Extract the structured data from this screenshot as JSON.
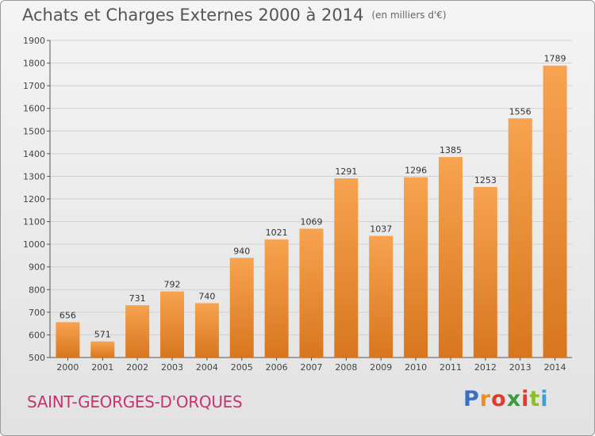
{
  "header": {
    "title": "Achats et Charges Externes 2000 à 2014",
    "unit": "(en milliers d'€)"
  },
  "footer": {
    "commune": "SAINT-GEORGES-D'ORQUES",
    "logo_letters": [
      "P",
      "r",
      "o",
      "x",
      "i",
      "t",
      "i"
    ],
    "logo_colors": [
      "#3a6fc4",
      "#f08a1c",
      "#e23a2e",
      "#3a9a3e",
      "#e23a2e",
      "#8bbf2a",
      "#3aa0d8"
    ]
  },
  "colors": {
    "bar_light": "#f7a34f",
    "bar_dark": "#d8761f",
    "grid": "#cfcfcf",
    "axis": "#555555"
  },
  "chart_data": {
    "type": "bar",
    "title": "Achats et Charges Externes 2000 à 2014",
    "subtitle": "(en milliers d'€)",
    "xlabel": "",
    "ylabel": "",
    "ylim": [
      500,
      1900
    ],
    "yticks": [
      500,
      600,
      700,
      800,
      900,
      1000,
      1100,
      1200,
      1300,
      1400,
      1500,
      1600,
      1700,
      1800,
      1900
    ],
    "grid": true,
    "categories": [
      "2000",
      "2001",
      "2002",
      "2003",
      "2004",
      "2005",
      "2006",
      "2007",
      "2008",
      "2009",
      "2010",
      "2011",
      "2012",
      "2013",
      "2014"
    ],
    "values": [
      656,
      571,
      731,
      792,
      740,
      940,
      1021,
      1069,
      1291,
      1037,
      1296,
      1385,
      1253,
      1556,
      1789
    ]
  }
}
